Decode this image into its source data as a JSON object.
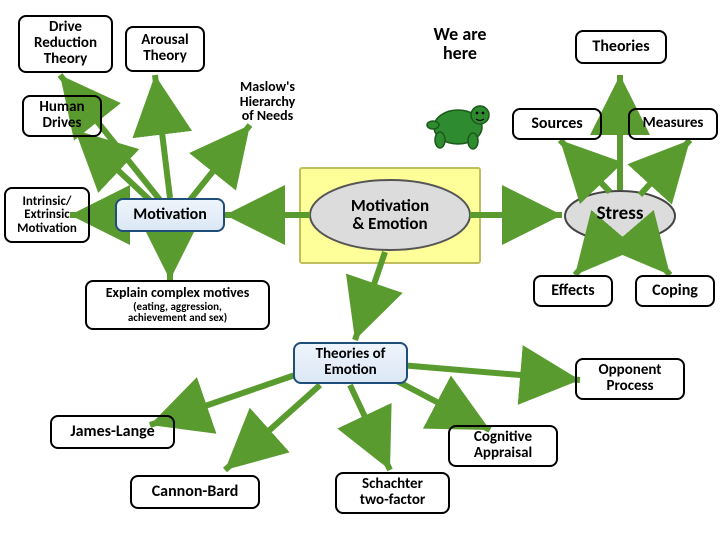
{
  "colors": {
    "arrow_green": "#5a9b2f",
    "oval_fill_yellow": "#ffff99",
    "oval_fill_grey": "#dcdcdc",
    "box_border_blue": "#1f4e79",
    "box_fill_blue": "#e2ecf7",
    "turtle_green": "#2f8b2f",
    "fontcolor": "#000000"
  },
  "fontsize": {
    "node": 15,
    "sub": 11
  },
  "nodes": {
    "drive": {
      "label": "Drive\nReduction\nTheory"
    },
    "arousal": {
      "label": "Arousal\nTheory"
    },
    "maslow": {
      "label": "Maslow's\nHierarchy\nof Needs"
    },
    "wehere": {
      "label": "We are\nhere"
    },
    "human": {
      "label": "Human\nDrives"
    },
    "intrinsic": {
      "label": "Intrinsic/\nExtrinsic\nMotivation"
    },
    "motivation": {
      "label": "Motivation"
    },
    "memotion": {
      "label": "Motivation\n& Emotion"
    },
    "theories": {
      "label": "Theories"
    },
    "sources": {
      "label": "Sources"
    },
    "measures": {
      "label": "Measures"
    },
    "stress": {
      "label": "Stress"
    },
    "effects": {
      "label": "Effects"
    },
    "coping": {
      "label": "Coping"
    },
    "explain": {
      "label": "Explain complex motives",
      "sub": "(eating, aggression,\nachievement and sex)"
    },
    "theoemot": {
      "label": "Theories of\nEmotion"
    },
    "opponent": {
      "label": "Opponent\nProcess"
    },
    "james": {
      "label": "James-Lange"
    },
    "cognitive": {
      "label": "Cognitive\nAppraisal"
    },
    "cannon": {
      "label": "Cannon-Bard"
    },
    "schachter": {
      "label": "Schachter\ntwo-factor"
    }
  },
  "arrows": [
    {
      "from": "motivation",
      "to": "drive"
    },
    {
      "from": "motivation",
      "to": "arousal"
    },
    {
      "from": "motivation",
      "to": "maslow"
    },
    {
      "from": "motivation",
      "to": "human"
    },
    {
      "from": "motivation",
      "to": "intrinsic"
    },
    {
      "from": "motivation",
      "to": "explain"
    },
    {
      "from": "memotion",
      "to": "motivation"
    },
    {
      "from": "memotion",
      "to": "stress"
    },
    {
      "from": "memotion",
      "to": "theoemot"
    },
    {
      "from": "stress",
      "to": "theories"
    },
    {
      "from": "stress",
      "to": "sources"
    },
    {
      "from": "stress",
      "to": "measures"
    },
    {
      "from": "stress",
      "to": "effects"
    },
    {
      "from": "stress",
      "to": "coping"
    },
    {
      "from": "theoemot",
      "to": "opponent"
    },
    {
      "from": "theoemot",
      "to": "james"
    },
    {
      "from": "theoemot",
      "to": "cognitive"
    },
    {
      "from": "theoemot",
      "to": "cannon"
    },
    {
      "from": "theoemot",
      "to": "schachter"
    }
  ]
}
